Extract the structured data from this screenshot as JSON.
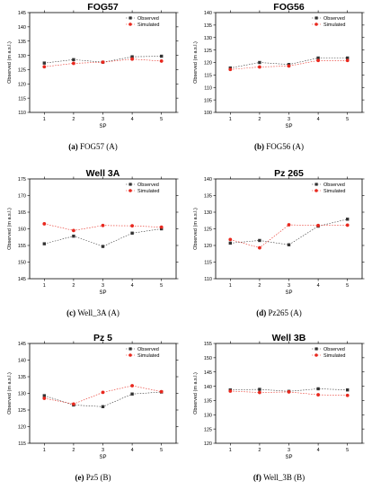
{
  "figure": {
    "series_names": [
      "Observed",
      "Simulated"
    ],
    "colors": {
      "observed": "#333333",
      "simulated": "#e8281e",
      "axis": "#000000"
    },
    "xlabel": "SP",
    "ylabel": "Observed (m a.s.l.)"
  },
  "chart_data": [
    {
      "type": "line",
      "title": "FOG57",
      "caption_tag": "(a)",
      "caption_text": "FOG57 (A)",
      "xlabel": "SP",
      "ylabel": "Observed (m a.s.l.)",
      "x": [
        1,
        2,
        3,
        4,
        5
      ],
      "ylim": [
        110,
        145
      ],
      "yticks": [
        110,
        115,
        120,
        125,
        130,
        135,
        140,
        145
      ],
      "legend": "top-right",
      "grid": false,
      "series": [
        {
          "name": "Observed",
          "values": [
            127.3,
            128.5,
            127.6,
            129.5,
            129.7
          ]
        },
        {
          "name": "Simulated",
          "values": [
            126.0,
            127.2,
            127.6,
            128.7,
            128.0
          ]
        }
      ]
    },
    {
      "type": "line",
      "title": "FOG56",
      "caption_tag": "(b)",
      "caption_text": "FOG56 (A)",
      "xlabel": "SP",
      "ylabel": "Observed (m a.s.l.)",
      "x": [
        1,
        2,
        3,
        4,
        5
      ],
      "ylim": [
        100,
        140
      ],
      "yticks": [
        100,
        105,
        110,
        115,
        120,
        125,
        130,
        135,
        140
      ],
      "legend": "top-right",
      "grid": false,
      "series": [
        {
          "name": "Observed",
          "values": [
            117.8,
            120.0,
            119.2,
            121.8,
            121.8
          ]
        },
        {
          "name": "Simulated",
          "values": [
            117.2,
            118.2,
            118.6,
            120.8,
            120.8
          ]
        }
      ]
    },
    {
      "type": "line",
      "title": "Well 3A",
      "caption_tag": "(c)",
      "caption_text": "Well_3A (A)",
      "xlabel": "SP",
      "ylabel": "Observed (m a.s.l.)",
      "x": [
        1,
        2,
        3,
        4,
        5
      ],
      "ylim": [
        145,
        175
      ],
      "yticks": [
        145,
        150,
        155,
        160,
        165,
        170,
        175
      ],
      "legend": "top-right",
      "grid": false,
      "series": [
        {
          "name": "Observed",
          "values": [
            155.5,
            157.8,
            154.7,
            158.7,
            160.0
          ]
        },
        {
          "name": "Simulated",
          "values": [
            161.5,
            159.5,
            161.0,
            160.9,
            160.5
          ]
        }
      ]
    },
    {
      "type": "line",
      "title": "Pz 265",
      "caption_tag": "(d)",
      "caption_text": "Pz265 (A)",
      "xlabel": "SP",
      "ylabel": "Observed (m a.s.l.)",
      "x": [
        1,
        2,
        3,
        4,
        5
      ],
      "ylim": [
        110,
        140
      ],
      "yticks": [
        110,
        115,
        120,
        125,
        130,
        135,
        140
      ],
      "legend": "top-right",
      "grid": false,
      "series": [
        {
          "name": "Observed",
          "values": [
            120.7,
            121.5,
            120.2,
            125.8,
            127.9
          ]
        },
        {
          "name": "Simulated",
          "values": [
            121.8,
            119.3,
            126.2,
            126.0,
            126.1
          ]
        }
      ]
    },
    {
      "type": "line",
      "title": "Pz 5",
      "caption_tag": "(e)",
      "caption_text": "Pz5 (B)",
      "xlabel": "SP",
      "ylabel": "Observed (m a.s.l.)",
      "x": [
        1,
        2,
        3,
        4,
        5
      ],
      "ylim": [
        115,
        145
      ],
      "yticks": [
        115,
        120,
        125,
        130,
        135,
        140,
        145
      ],
      "legend": "top-right",
      "grid": false,
      "series": [
        {
          "name": "Observed",
          "values": [
            129.3,
            126.5,
            126.0,
            129.8,
            130.4
          ]
        },
        {
          "name": "Simulated",
          "values": [
            128.5,
            126.8,
            130.3,
            132.3,
            130.5
          ]
        }
      ]
    },
    {
      "type": "line",
      "title": "Well 3B",
      "caption_tag": "(f)",
      "caption_text": "Well_3B (B)",
      "xlabel": "SP",
      "ylabel": "Observed (m a.s.l.)",
      "x": [
        1,
        2,
        3,
        4,
        5
      ],
      "ylim": [
        120,
        155
      ],
      "yticks": [
        120,
        125,
        130,
        135,
        140,
        145,
        150,
        155
      ],
      "legend": "top-right",
      "grid": false,
      "series": [
        {
          "name": "Observed",
          "values": [
            138.7,
            138.9,
            138.2,
            139.1,
            138.7
          ]
        },
        {
          "name": "Simulated",
          "values": [
            138.3,
            137.8,
            138.0,
            137.0,
            136.8
          ]
        }
      ]
    }
  ]
}
